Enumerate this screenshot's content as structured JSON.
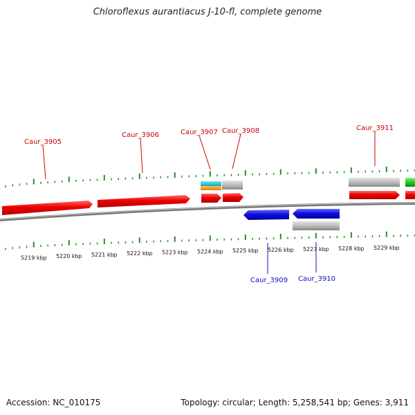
{
  "title": "Chloroflexus aurantiacus J-10-fl, complete genome",
  "footer": {
    "accession": "Accession: NC_010175",
    "summary": "Topology: circular; Length: 5,258,541 bp; Genes: 3,911"
  },
  "axis": {
    "unit": "kbp",
    "ticks": [
      "5219 kbp",
      "5220 kbp",
      "5221 kbp",
      "5222 kbp",
      "5223 kbp",
      "5224 kbp",
      "5225 kbp",
      "5226 kbp",
      "5227 kbp",
      "5228 kbp",
      "5229 kbp"
    ]
  },
  "colors": {
    "forward_gene": "#ee0000",
    "reverse_gene": "#1010dd",
    "gray_feature": "#bbbbbb",
    "tick": "#2a8a2a",
    "backbone": "#777777",
    "label_forward": "#cc0000",
    "label_reverse": "#1010bb"
  },
  "labels": [
    {
      "text": "Caur_3905",
      "strand": "forward"
    },
    {
      "text": "Caur_3906",
      "strand": "forward"
    },
    {
      "text": "Caur_3907",
      "strand": "forward"
    },
    {
      "text": "Caur_3908",
      "strand": "forward"
    },
    {
      "text": "Caur_3911",
      "strand": "forward"
    },
    {
      "text": "Caur_3909",
      "strand": "reverse"
    },
    {
      "text": "Caur_3910",
      "strand": "reverse"
    }
  ]
}
